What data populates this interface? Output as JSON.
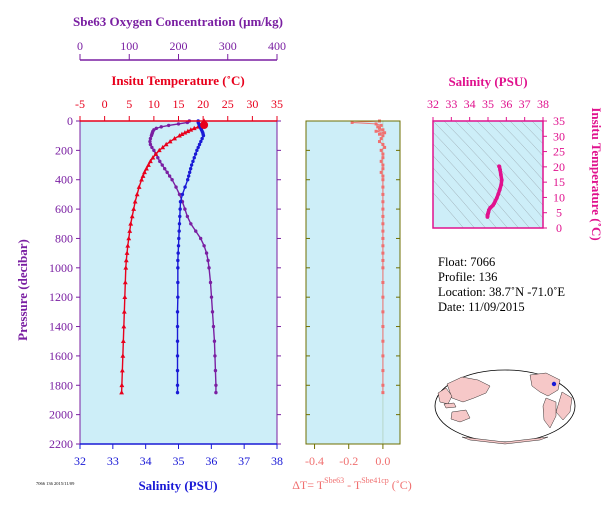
{
  "colors": {
    "temperature": "#e8001c",
    "salinity": "#1a1ad6",
    "oxygen": "#7a1fa2",
    "delta": "#f07070",
    "ts": "#e0128e",
    "panel_bg": "#cdeef8",
    "pressure_label": "#7a1fa2",
    "delta_axis": "#6f6f00"
  },
  "main": {
    "oxygen_axis": {
      "label": "Sbe63 Oxygen Concentration (μm/kg)",
      "ticks": [
        "0",
        "100",
        "200",
        "300",
        "400"
      ]
    },
    "temp_axis": {
      "label": "Insitu Temperature (˚C)",
      "ticks": [
        "-5",
        "0",
        "5",
        "10",
        "15",
        "20",
        "25",
        "30",
        "35"
      ]
    },
    "pressure_axis": {
      "label": "Pressure (decibar)",
      "ticks": [
        "0",
        "200",
        "400",
        "600",
        "800",
        "1000",
        "1200",
        "1400",
        "1600",
        "1800",
        "2000",
        "2200"
      ]
    },
    "salinity_axis": {
      "label": "Salinity (PSU)",
      "ticks": [
        "32",
        "33",
        "34",
        "35",
        "36",
        "37",
        "38"
      ]
    }
  },
  "delta_panel": {
    "ticks": [
      "-0.4",
      "-0.2",
      "0.0"
    ],
    "label_prefix": "ΔT= T",
    "label_sup1": "Sbe63",
    "label_mid": " - T",
    "label_sup2": "Sbe41cp",
    "label_suffix": " (˚C)"
  },
  "ts_panel": {
    "x_label": "Salinity (PSU)",
    "x_ticks": [
      "32",
      "33",
      "34",
      "35",
      "36",
      "37",
      "38"
    ],
    "y_label": "Insitu Temperature (˚C)",
    "y_ticks": [
      "0",
      "5",
      "10",
      "15",
      "20",
      "25",
      "30",
      "35"
    ]
  },
  "info": {
    "float": "Float:  7066",
    "profile": "Profile:  136",
    "location": "Location:  38.7˚N  -71.0˚E",
    "date": "Date:  11/09/2015"
  },
  "footer_small": "7066 136 2015/11/09",
  "chart_data": [
    {
      "type": "line",
      "name": "Insitu Temperature",
      "x_unit": "˚C",
      "xlim": [
        -5,
        35
      ],
      "ylim": [
        2200,
        0
      ],
      "pressure": [
        0,
        10,
        20,
        30,
        40,
        50,
        60,
        70,
        80,
        90,
        100,
        120,
        140,
        160,
        180,
        200,
        225,
        250,
        275,
        300,
        325,
        350,
        375,
        400,
        450,
        500,
        550,
        600,
        650,
        700,
        750,
        800,
        850,
        900,
        950,
        1000,
        1100,
        1200,
        1300,
        1400,
        1500,
        1600,
        1700,
        1800,
        1850
      ],
      "values": [
        20.2,
        20.2,
        20.1,
        19.8,
        19.0,
        18.2,
        17.5,
        16.9,
        16.3,
        15.7,
        15.2,
        14.2,
        13.3,
        12.5,
        11.8,
        11.1,
        10.4,
        9.8,
        9.3,
        8.9,
        8.5,
        8.1,
        7.8,
        7.5,
        7.0,
        6.6,
        6.2,
        5.9,
        5.6,
        5.3,
        5.1,
        4.9,
        4.7,
        4.55,
        4.4,
        4.3,
        4.2,
        4.1,
        4.0,
        3.9,
        3.8,
        3.7,
        3.6,
        3.5,
        3.45
      ]
    },
    {
      "type": "line",
      "name": "Salinity",
      "x_unit": "PSU",
      "xlim": [
        32,
        38
      ],
      "ylim": [
        2200,
        0
      ],
      "pressure": [
        0,
        10,
        20,
        30,
        40,
        50,
        60,
        70,
        80,
        90,
        100,
        120,
        140,
        160,
        180,
        200,
        225,
        250,
        275,
        300,
        325,
        350,
        375,
        400,
        450,
        500,
        550,
        600,
        650,
        700,
        750,
        800,
        850,
        900,
        950,
        1000,
        1100,
        1200,
        1300,
        1400,
        1500,
        1600,
        1700,
        1800,
        1850
      ],
      "values": [
        35.6,
        35.6,
        35.62,
        35.64,
        35.66,
        35.68,
        35.7,
        35.72,
        35.74,
        35.75,
        35.76,
        35.72,
        35.68,
        35.64,
        35.6,
        35.56,
        35.52,
        35.48,
        35.44,
        35.4,
        35.37,
        35.34,
        35.31,
        35.28,
        35.2,
        35.12,
        35.06,
        35.05,
        35.04,
        35.03,
        35.02,
        35.01,
        35.0,
        34.99,
        34.98,
        34.98,
        34.98,
        34.98,
        34.97,
        34.97,
        34.97,
        34.97,
        34.97,
        34.97,
        34.97
      ]
    },
    {
      "type": "line",
      "name": "Sbe63 Oxygen Concentration",
      "x_unit": "μm/kg",
      "xlim": [
        0,
        400
      ],
      "ylim": [
        2200,
        0
      ],
      "pressure": [
        0,
        10,
        20,
        30,
        40,
        50,
        60,
        70,
        80,
        90,
        100,
        120,
        140,
        160,
        180,
        200,
        225,
        250,
        275,
        300,
        325,
        350,
        375,
        400,
        450,
        500,
        550,
        600,
        650,
        700,
        750,
        800,
        850,
        900,
        950,
        1000,
        1100,
        1200,
        1300,
        1400,
        1500,
        1600,
        1700,
        1800,
        1850
      ],
      "values": [
        222,
        218,
        200,
        180,
        165,
        155,
        150,
        148,
        147,
        146,
        145,
        143,
        142,
        143,
        146,
        150,
        154,
        158,
        162,
        167,
        172,
        177,
        182,
        187,
        195,
        202,
        208,
        213,
        218,
        225,
        235,
        245,
        252,
        257,
        260,
        262,
        265,
        267,
        269,
        271,
        273,
        274,
        275,
        276,
        276
      ]
    },
    {
      "type": "scatter",
      "name": "ΔT",
      "x_unit": "˚C",
      "xlim": [
        -0.45,
        0.1
      ],
      "ylim": [
        2200,
        0
      ],
      "pressure": [
        0,
        10,
        20,
        30,
        40,
        50,
        60,
        70,
        80,
        90,
        100,
        120,
        140,
        160,
        180,
        200,
        225,
        250,
        275,
        300,
        325,
        350,
        375,
        400,
        450,
        500,
        550,
        600,
        650,
        700,
        750,
        800,
        850,
        900,
        950,
        1000,
        1100,
        1200,
        1300,
        1400,
        1500,
        1600,
        1700,
        1800,
        1850
      ],
      "values": [
        -0.02,
        -0.18,
        -0.04,
        -0.01,
        -0.03,
        -0.02,
        0.0,
        -0.04,
        0.01,
        -0.02,
        0.0,
        -0.01,
        -0.02,
        0.0,
        0.01,
        -0.01,
        0.0,
        0.0,
        -0.01,
        0.0,
        0.0,
        -0.01,
        0.0,
        0.0,
        0.0,
        0.0,
        0.0,
        0.0,
        0.0,
        0.0,
        0.0,
        0.0,
        0.0,
        0.0,
        0.0,
        0.0,
        0.0,
        0.0,
        0.0,
        0.0,
        0.0,
        0.0,
        0.0,
        0.0,
        0.0
      ]
    },
    {
      "type": "scatter",
      "name": "T-S",
      "xlim": [
        32,
        38
      ],
      "ylim": [
        0,
        35
      ],
      "salinity": [
        35.6,
        35.62,
        35.66,
        35.7,
        35.75,
        35.72,
        35.64,
        35.56,
        35.48,
        35.4,
        35.34,
        35.28,
        35.2,
        35.12,
        35.05,
        35.03,
        35.01,
        34.99,
        34.98,
        34.98,
        34.97,
        34.97
      ],
      "temperature": [
        20.2,
        20.1,
        19.0,
        17.5,
        15.7,
        14.2,
        12.5,
        11.1,
        9.8,
        8.9,
        8.1,
        7.5,
        7.0,
        6.6,
        5.9,
        5.3,
        4.9,
        4.55,
        4.3,
        4.1,
        3.9,
        3.6
      ]
    }
  ]
}
